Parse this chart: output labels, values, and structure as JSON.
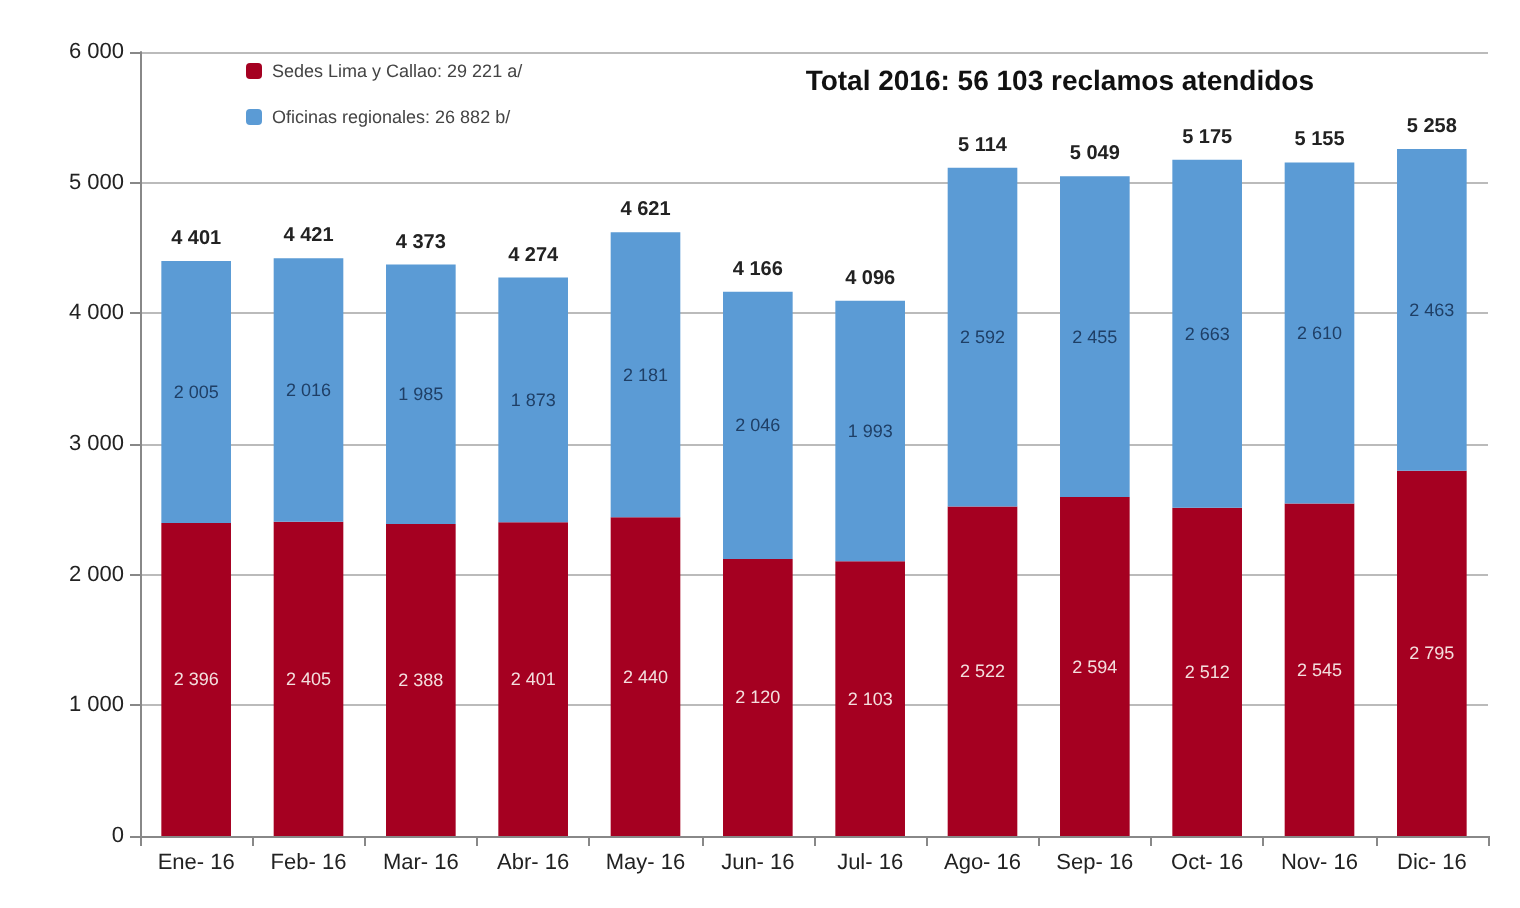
{
  "chart_data": {
    "type": "bar",
    "title": "Total 2016: 56 103 reclamos atendidos",
    "categories": [
      "Ene- 16",
      "Feb- 16",
      "Mar- 16",
      "Abr- 16",
      "May- 16",
      "Jun- 16",
      "Jul- 16",
      "Ago- 16",
      "Sep- 16",
      "Oct- 16",
      "Nov- 16",
      "Dic- 16"
    ],
    "stacked": true,
    "series": [
      {
        "name": "Sedes Lima y Callao: 29 221 a/",
        "color": "#a50021",
        "values": [
          2396,
          2405,
          2388,
          2401,
          2440,
          2120,
          2103,
          2522,
          2594,
          2512,
          2545,
          2795
        ],
        "value_labels": [
          "2 396",
          "2 405",
          "2 388",
          "2 401",
          "2 440",
          "2 120",
          "2 103",
          "2 522",
          "2 594",
          "2 512",
          "2 545",
          "2 795"
        ]
      },
      {
        "name": "Oficinas regionales: 26 882 b/",
        "color": "#5b9bd5",
        "values": [
          2005,
          2016,
          1985,
          1873,
          2181,
          2046,
          1993,
          2592,
          2455,
          2663,
          2610,
          2463
        ],
        "value_labels": [
          "2 005",
          "2 016",
          "1 985",
          "1 873",
          "2 181",
          "2 046",
          "1 993",
          "2 592",
          "2 455",
          "2 663",
          "2 610",
          "2 463"
        ]
      }
    ],
    "totals": [
      "4 401",
      "4 421",
      "4 373",
      "4 274",
      "4 621",
      "4 166",
      "4 096",
      "5 114",
      "5 049",
      "5 175",
      "5 155",
      "5 258"
    ],
    "ylim": [
      0,
      6000
    ],
    "yticks": [
      0,
      {
        "value": 1000,
        "label": "1 000"
      },
      {
        "value": 2000,
        "label": "2 000"
      },
      {
        "value": 3000,
        "label": "3 000"
      },
      {
        "value": 4000,
        "label": "4 000"
      },
      {
        "value": 5000,
        "label": "5 000"
      },
      {
        "value": 6000,
        "label": "6 000"
      }
    ],
    "grid": "y",
    "legend": "top left"
  }
}
